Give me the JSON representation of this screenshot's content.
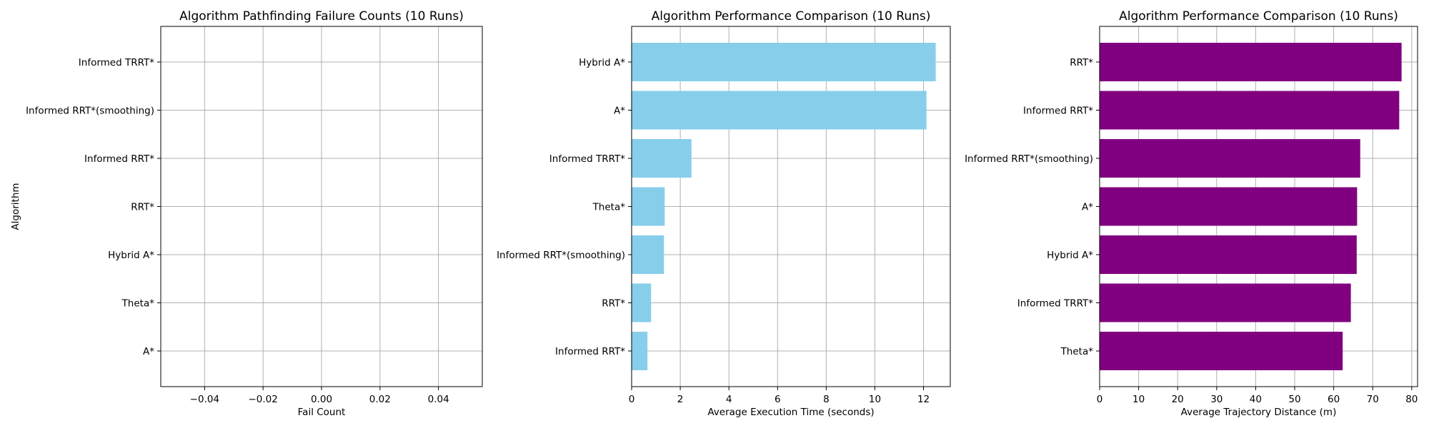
{
  "chart_data": [
    {
      "type": "bar",
      "orientation": "horizontal",
      "title": "Algorithm Pathfinding Failure Counts (10 Runs)",
      "xlabel": "Fail Count",
      "ylabel": "Algorithm",
      "categories": [
        "A*",
        "Theta*",
        "Hybrid A*",
        "RRT*",
        "Informed RRT*",
        "Informed RRT*(smoothing)",
        "Informed TRRT*"
      ],
      "values": [
        0,
        0,
        0,
        0,
        0,
        0,
        0
      ],
      "xlim": [
        -0.055,
        0.055
      ],
      "xticks": [
        -0.04,
        -0.02,
        0.0,
        0.02,
        0.04
      ],
      "xtick_labels": [
        "−0.04",
        "−0.02",
        "0.00",
        "0.02",
        "0.04"
      ],
      "grid": true,
      "color": "#87CEEB"
    },
    {
      "type": "bar",
      "orientation": "horizontal",
      "title": "Algorithm Performance Comparison (10 Runs)",
      "xlabel": "Average Execution Time (seconds)",
      "ylabel": "",
      "categories": [
        "Informed RRT*",
        "RRT*",
        "Informed RRT*(smoothing)",
        "Theta*",
        "Informed TRRT*",
        "A*",
        "Hybrid A*"
      ],
      "values": [
        0.65,
        0.8,
        1.33,
        1.36,
        2.46,
        12.12,
        12.5
      ],
      "xlim": [
        0,
        13.1
      ],
      "xticks": [
        0,
        2,
        4,
        6,
        8,
        10,
        12
      ],
      "xtick_labels": [
        "0",
        "2",
        "4",
        "6",
        "8",
        "10",
        "12"
      ],
      "grid": true,
      "color": "#87CEEB"
    },
    {
      "type": "bar",
      "orientation": "horizontal",
      "title": "Algorithm Performance Comparison (10 Runs)",
      "xlabel": "Average Trajectory Distance (m)",
      "ylabel": "",
      "categories": [
        "Theta*",
        "Informed TRRT*",
        "Hybrid A*",
        "A*",
        "Informed RRT*(smoothing)",
        "Informed RRT*",
        "RRT*"
      ],
      "values": [
        62.3,
        64.4,
        65.9,
        66.0,
        66.8,
        76.8,
        77.4
      ],
      "xlim": [
        0,
        81.5
      ],
      "xticks": [
        0,
        10,
        20,
        30,
        40,
        50,
        60,
        70,
        80
      ],
      "xtick_labels": [
        "0",
        "10",
        "20",
        "30",
        "40",
        "50",
        "60",
        "70",
        "80"
      ],
      "grid": true,
      "color": "#800080"
    }
  ]
}
